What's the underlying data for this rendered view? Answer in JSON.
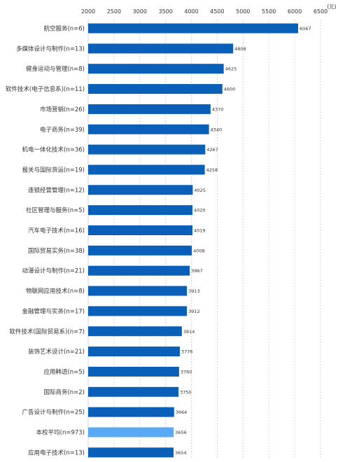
{
  "chart_data": {
    "type": "bar",
    "orientation": "horizontal",
    "unit_label": "(元)",
    "xlim": [
      2000,
      6500
    ],
    "ticks": [
      2000,
      2500,
      3000,
      3500,
      4000,
      4500,
      5000,
      5500,
      6000,
      6500
    ],
    "grid": true,
    "colors": {
      "default": "#0a5fb8",
      "highlight": "#5aa9f5"
    },
    "highlight_category": "本校平均(n=973)",
    "categories": [
      "航空服务(n=6)",
      "多媒体设计与制作(n=13)",
      "健身运动与管理(n=8)",
      "软件技术(电子信息系)(n=11)",
      "市场营销(n=26)",
      "电子商务(n=39)",
      "机电一体化技术(n=36)",
      "报关与国际货运(n=19)",
      "连锁经营管理(n=12)",
      "社区管理与服务(n=5)",
      "汽车电子技术(n=16)",
      "国际贸易实务(n=38)",
      "动漫设计与制作(n=21)",
      "物联网应用技术(n=8)",
      "金融管理与实务(n=17)",
      "软件技术(国际贸易系)(n=7)",
      "装饰艺术设计(n=21)",
      "应用韩语(n=5)",
      "国际商务(n=2)",
      "广告设计与制作(n=25)",
      "本校平均(n=973)",
      "应用电子技术(n=13)"
    ],
    "values": [
      6067,
      4808,
      4625,
      4600,
      4370,
      4340,
      4267,
      4258,
      4025,
      4020,
      4019,
      4008,
      3967,
      3913,
      3912,
      3814,
      3776,
      3760,
      3750,
      3664,
      3656,
      3654
    ]
  }
}
